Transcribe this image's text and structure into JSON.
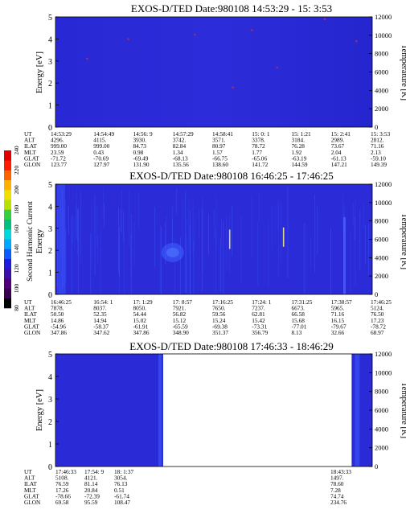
{
  "colors": {
    "background": "#2a2ad6",
    "background_dark": "#1e1ec8",
    "streak": "#3c5cff",
    "hotspot": "#c0304c",
    "spike": "#d8d890",
    "frame": "#000000"
  },
  "chart_data": [
    {
      "type": "heatmap",
      "title": "EXOS-D/TED   Date:980108  14:53:29 - 15: 3:53",
      "ylabel": "Energy [eV]",
      "y2label": "Temperature [K]",
      "ylim": [
        0,
        5
      ],
      "y2lim": [
        0,
        12000
      ],
      "yticks": [
        0,
        1,
        2,
        3,
        4,
        5
      ],
      "y2ticks": [
        0,
        2000,
        4000,
        6000,
        8000,
        10000,
        12000
      ],
      "ephemeris": {
        "rows": [
          "UT",
          "ALT",
          "ILAT",
          "MLT",
          "GLAT",
          "GLON"
        ],
        "columns": [
          [
            "14:53:29",
            "4296.",
            "999.00",
            "23.59",
            "-71.72",
            "123.77"
          ],
          [
            "14:54:49",
            "4115.",
            "999.00",
            "0.43",
            "-70.69",
            "127.97"
          ],
          [
            "14:56: 9",
            "3930.",
            "84.73",
            "0.98",
            "-69.49",
            "131.90"
          ],
          [
            "14:57:29",
            "3742.",
            "82.84",
            "1.34",
            "-68.13",
            "135.56"
          ],
          [
            "14:58:41",
            "3571.",
            "80.97",
            "1.57",
            "-66.75",
            "138.60"
          ],
          [
            "15: 0: 1",
            "3378.",
            "78.72",
            "1.77",
            "-65.06",
            "141.72"
          ],
          [
            "15: 1:21",
            "3184.",
            "76.28",
            "1.92",
            "-63.19",
            "144.59"
          ],
          [
            "15: 2:41",
            "2989.",
            "73.67",
            "2.04",
            "-61.13",
            "147.21"
          ],
          [
            "15: 3:53",
            "2812.",
            "71.16",
            "2.13",
            "-59.10",
            "149.39"
          ]
        ]
      },
      "coverage": [
        [
          0,
          1
        ]
      ],
      "features": [
        {
          "x": 0.1,
          "energy": 3.1,
          "kind": "hotspot"
        },
        {
          "x": 0.23,
          "energy": 4.0,
          "kind": "hotspot"
        },
        {
          "x": 0.44,
          "energy": 4.2,
          "kind": "hotspot"
        },
        {
          "x": 0.56,
          "energy": 1.8,
          "kind": "hotspot"
        },
        {
          "x": 0.62,
          "energy": 4.4,
          "kind": "hotspot"
        },
        {
          "x": 0.7,
          "energy": 2.7,
          "kind": "hotspot"
        },
        {
          "x": 0.85,
          "energy": 4.9,
          "kind": "hotspot"
        },
        {
          "x": 0.95,
          "energy": 3.9,
          "kind": "hotspot"
        }
      ]
    },
    {
      "type": "heatmap",
      "title": "EXOS-D/TED   Date:980108  16:46:25 - 17:46:25",
      "ylabel": "Energy",
      "ylabel2": "Second Harmonic Current",
      "y2label": "Temperature [K]",
      "ylim": [
        0,
        5
      ],
      "y2lim": [
        0,
        12000
      ],
      "yticks": [
        0,
        1,
        2,
        3,
        4,
        5
      ],
      "y2ticks": [
        0,
        2000,
        4000,
        6000,
        8000,
        10000,
        12000
      ],
      "ephemeris": {
        "rows": [
          "UT",
          "ALT",
          "ILAT",
          "MLT",
          "GLAT",
          "GLON"
        ],
        "columns": [
          [
            "16:46:25",
            "7878.",
            "50.50",
            "14.86",
            "-54.96",
            "347.86"
          ],
          [
            "16:54: 1",
            "8037.",
            "52.35",
            "14.94",
            "-58.37",
            "347.62"
          ],
          [
            "17: 1:29",
            "8050.",
            "54.44",
            "15.02",
            "-61.91",
            "347.86"
          ],
          [
            "17: 8:57",
            "7921.",
            "56.82",
            "15.12",
            "-65.59",
            "348.90"
          ],
          [
            "17:16:25",
            "7650.",
            "59.56",
            "15.24",
            "-69.38",
            "351.37"
          ],
          [
            "17:24: 1",
            "7237.",
            "62.81",
            "15.42",
            "-73.31",
            "356.79"
          ],
          [
            "17:31:25",
            "6673.",
            "66.58",
            "15.68",
            "-77.01",
            "8.13"
          ],
          [
            "17:38:57",
            "5965.",
            "71.16",
            "16.15",
            "-79.67",
            "32.66"
          ],
          [
            "17:46:25",
            "5124.",
            "76.50",
            "17.23",
            "-78.72",
            "68.97"
          ]
        ]
      },
      "colorbar": {
        "ticks": [
          80,
          100,
          120,
          140,
          160,
          180,
          200,
          220,
          240
        ]
      },
      "coverage": [
        [
          0,
          1
        ]
      ],
      "features": [
        {
          "x": 0.55,
          "energy": 2.5,
          "kind": "spike"
        },
        {
          "x": 0.72,
          "energy": 2.6,
          "kind": "spike"
        }
      ]
    },
    {
      "type": "heatmap",
      "title": "EXOS-D/TED   Date:980108  17:46:33 - 18:46:29",
      "ylabel": "Energy [eV]",
      "y2label": "Temperature [K]",
      "ylim": [
        0,
        5
      ],
      "y2lim": [
        0,
        12000
      ],
      "yticks": [
        0,
        1,
        2,
        3,
        4,
        5
      ],
      "y2ticks": [
        0,
        2000,
        4000,
        6000,
        8000,
        10000,
        12000
      ],
      "ephemeris": {
        "rows": [
          "UT",
          "ALT",
          "ILAT",
          "MLT",
          "GLAT",
          "GLON"
        ],
        "columns": [
          [
            "17:46:33",
            "5108.",
            "76.59",
            "17.26",
            "-78.66",
            "69.58"
          ],
          [
            "17:54: 9",
            "4121.",
            "81.14",
            "20.84",
            "-72.39",
            "95.59"
          ],
          [
            "18: 1:37",
            "3054.",
            "76.13",
            "0.51",
            "-61.74",
            "108.47"
          ],
          [
            "18:43:33",
            "1497.",
            "78.60",
            "7.28",
            "74.74",
            "234.76"
          ]
        ]
      },
      "coverage": [
        [
          0,
          0.34
        ],
        [
          0.935,
          1
        ]
      ],
      "features": []
    }
  ]
}
